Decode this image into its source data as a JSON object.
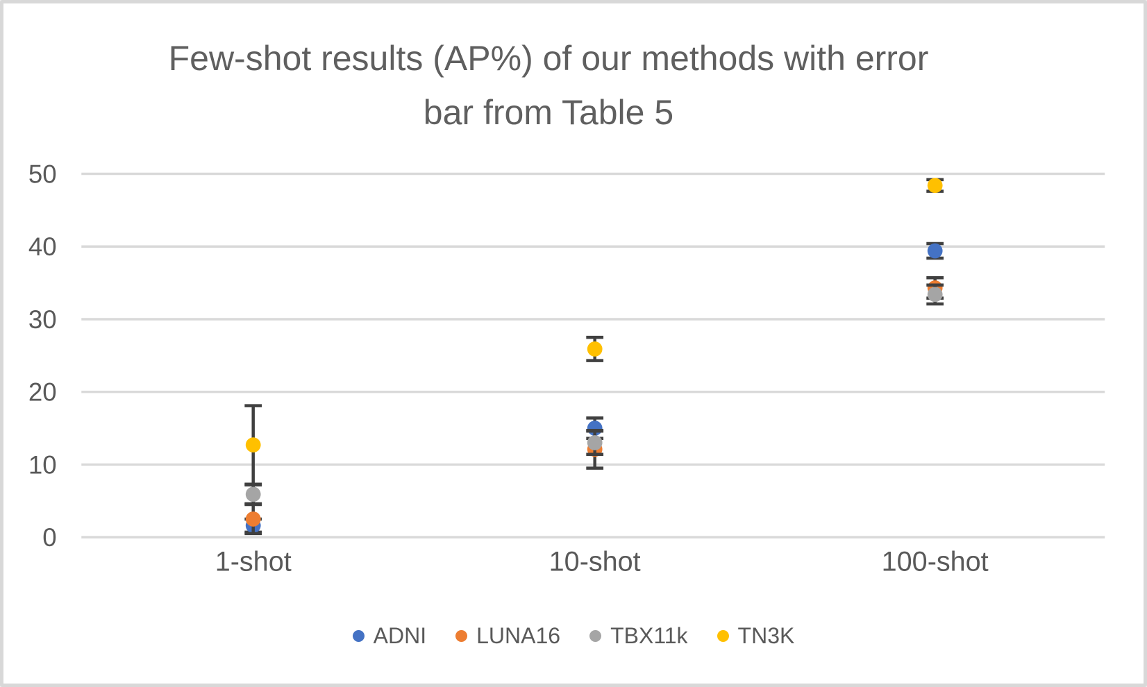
{
  "frame": {
    "background": "#ffffff",
    "border_color": "#d8d8d8"
  },
  "chart_data": {
    "type": "scatter",
    "title": "Few-shot results (AP%) of our methods with error bar from Table 5",
    "title_lines": [
      "Few-shot results (AP%) of our methods with error",
      "bar from Table 5"
    ],
    "categories": [
      "1-shot",
      "10-shot",
      "100-shot"
    ],
    "series": [
      {
        "name": "ADNI",
        "color": "#4472C4",
        "values": [
          1.6,
          15.0,
          39.4
        ],
        "error": [
          0.9,
          1.4,
          1.0
        ]
      },
      {
        "name": "LUNA16",
        "color": "#ED7D31",
        "values": [
          2.5,
          12.1,
          34.3
        ],
        "error": [
          2.0,
          2.6,
          1.4
        ]
      },
      {
        "name": "TBX11k",
        "color": "#A5A5A5",
        "values": [
          5.9,
          13.0,
          33.4
        ],
        "error": [
          1.3,
          1.6,
          1.3
        ]
      },
      {
        "name": "TN3K",
        "color": "#FFC000",
        "values": [
          12.7,
          25.9,
          48.4
        ],
        "error": [
          5.4,
          1.6,
          0.8
        ]
      }
    ],
    "ylim": [
      0,
      50
    ],
    "yticks": [
      0,
      10,
      20,
      30,
      40,
      50
    ],
    "xlabel": "",
    "ylabel": "",
    "grid": "horizontal",
    "legend_position": "bottom",
    "marker_shape": "circle",
    "error_bar_color": "#404040",
    "text_color": "#595959",
    "gridline_color": "#d9d9d9"
  }
}
